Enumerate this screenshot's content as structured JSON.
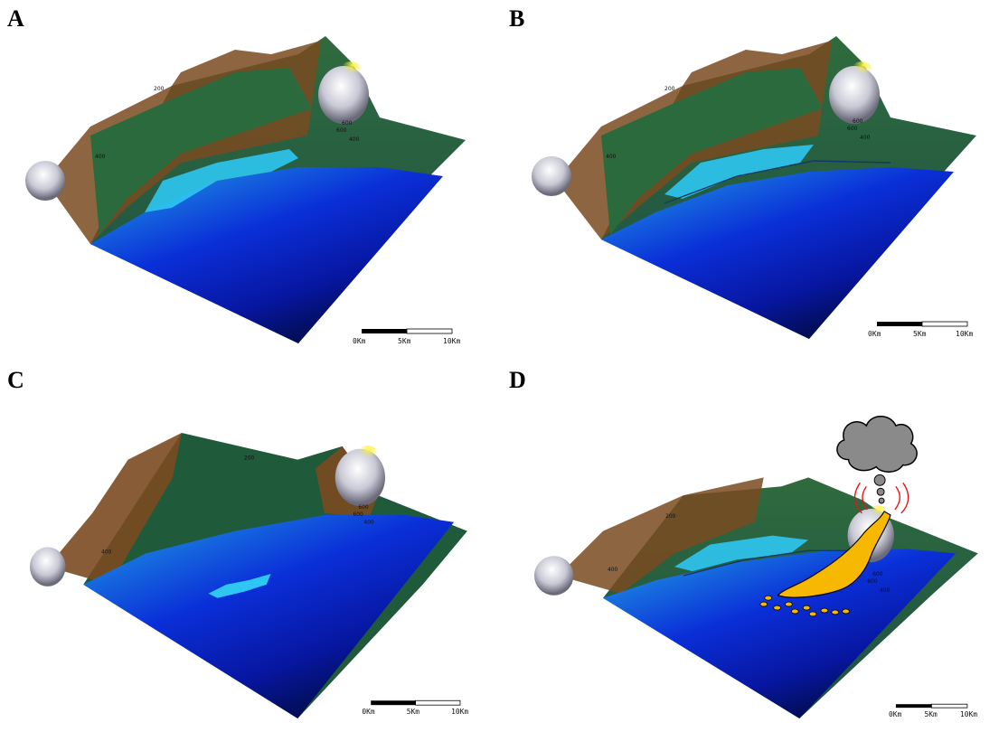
{
  "panels": [
    {
      "label": "A",
      "contours": [
        "200",
        "400",
        "600",
        "600",
        "400"
      ]
    },
    {
      "label": "B",
      "contours": [
        "200",
        "400",
        "600",
        "600",
        "400"
      ]
    },
    {
      "label": "C",
      "contours": [
        "200",
        "400",
        "600",
        "600",
        "400"
      ]
    },
    {
      "label": "D",
      "contours": [
        "200",
        "400",
        "600",
        "600",
        "400"
      ]
    }
  ],
  "scale_bar": {
    "labels": [
      "0Km",
      "5Km",
      "10Km"
    ]
  },
  "colors": {
    "deep_water": "#000a3a",
    "mid_water": "#0a1fd6",
    "shallow_water": "#2ec6f2",
    "lowland": "#1f5a3a",
    "highland": "#7a4a20",
    "peak": "#e8e8ee",
    "summit": "#f4e640",
    "lava": "#f6b800",
    "ash_cloud": "#8a8a8a"
  },
  "icons": [
    "volcano-ash-cloud-icon",
    "lava-flow-icon",
    "eruption-heat-lines-icon"
  ]
}
